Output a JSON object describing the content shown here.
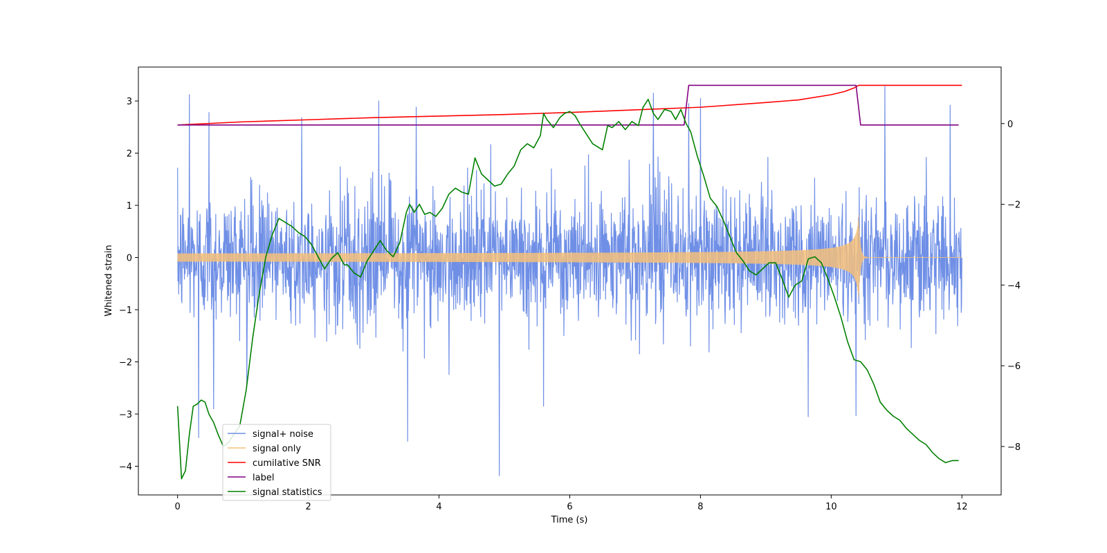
{
  "chart_data": {
    "type": "line",
    "title": "",
    "xlabel": "Time (s)",
    "ylabel": "Whitened strain",
    "y2label": "",
    "xlim": [
      -0.6,
      12.6
    ],
    "ylim": [
      -4.55,
      3.65
    ],
    "y2lim": [
      -9.2,
      1.4
    ],
    "x_ticks": [
      0,
      2,
      4,
      6,
      8,
      10,
      12
    ],
    "x_tick_labels": [
      "0",
      "2",
      "4",
      "6",
      "8",
      "10",
      "12"
    ],
    "y_ticks": [
      -4,
      -3,
      -2,
      -1,
      0,
      1,
      2,
      3
    ],
    "y_tick_labels": [
      "−4",
      "−3",
      "−2",
      "−1",
      "0",
      "1",
      "2",
      "3"
    ],
    "y2_ticks": [
      -8,
      -6,
      -4,
      -2,
      0
    ],
    "y2_tick_labels": [
      "−8",
      "−6",
      "−4",
      "−2",
      "0"
    ],
    "grid": false,
    "legend_placement": "lower-left",
    "series": [
      {
        "name": "signal+ noise",
        "color": "#6f8fe6",
        "axis": "left",
        "kind": "noise",
        "x_range": [
          0,
          12
        ],
        "noise_sigma": 0.62,
        "spikes": [
          [
            0.18,
            3.12
          ],
          [
            0.32,
            -3.45
          ],
          [
            0.48,
            2.78
          ],
          [
            0.55,
            -2.9
          ],
          [
            1.9,
            2.68
          ],
          [
            3.08,
            3.0
          ],
          [
            3.52,
            -3.52
          ],
          [
            3.65,
            2.88
          ],
          [
            4.92,
            -4.18
          ],
          [
            5.6,
            -2.85
          ],
          [
            7.28,
            3.15
          ],
          [
            7.82,
            2.95
          ],
          [
            8.0,
            3.05
          ],
          [
            9.65,
            -3.05
          ],
          [
            10.38,
            -3.03
          ],
          [
            10.82,
            3.28
          ],
          [
            11.82,
            2.92
          ]
        ]
      },
      {
        "name": "signal only",
        "color": "#f5c07a",
        "axis": "left",
        "kind": "chirp",
        "x_range": [
          0,
          12
        ],
        "merger_time": 10.42,
        "amplitude_start": 0.06,
        "amplitude_peak": 0.85
      },
      {
        "name": "cumilative SNR",
        "color": "#ff0000",
        "axis": "left",
        "x": [
          0,
          1,
          2,
          3,
          4,
          5,
          6,
          7,
          8,
          9,
          9.5,
          10,
          10.2,
          10.35,
          10.42,
          12
        ],
        "y": [
          2.54,
          2.6,
          2.64,
          2.68,
          2.71,
          2.74,
          2.78,
          2.83,
          2.88,
          2.97,
          3.02,
          3.12,
          3.18,
          3.25,
          3.3,
          3.3
        ]
      },
      {
        "name": "label",
        "color": "#800080",
        "axis": "left",
        "x": [
          0,
          7.75,
          7.82,
          10.38,
          10.45,
          11.95
        ],
        "y": [
          2.54,
          2.54,
          3.3,
          3.3,
          2.54,
          2.54
        ]
      },
      {
        "name": "signal statistics",
        "color": "#008000",
        "axis": "right",
        "x": [
          0,
          0.06,
          0.12,
          0.18,
          0.24,
          0.3,
          0.36,
          0.42,
          0.48,
          0.55,
          0.62,
          0.7,
          0.78,
          0.86,
          0.95,
          1.05,
          1.15,
          1.25,
          1.35,
          1.45,
          1.55,
          1.65,
          1.75,
          1.85,
          1.95,
          2.05,
          2.15,
          2.25,
          2.35,
          2.45,
          2.55,
          2.6,
          2.7,
          2.8,
          2.9,
          3.0,
          3.1,
          3.2,
          3.3,
          3.4,
          3.5,
          3.55,
          3.62,
          3.7,
          3.78,
          3.86,
          3.95,
          4.05,
          4.15,
          4.25,
          4.35,
          4.45,
          4.55,
          4.65,
          4.75,
          4.85,
          4.95,
          5.05,
          5.15,
          5.25,
          5.35,
          5.45,
          5.55,
          5.6,
          5.65,
          5.75,
          5.85,
          5.92,
          6.0,
          6.08,
          6.15,
          6.25,
          6.35,
          6.45,
          6.5,
          6.58,
          6.65,
          6.75,
          6.85,
          6.95,
          7.05,
          7.12,
          7.2,
          7.28,
          7.35,
          7.45,
          7.55,
          7.62,
          7.7,
          7.78,
          7.85,
          7.95,
          8.05,
          8.15,
          8.25,
          8.35,
          8.45,
          8.55,
          8.65,
          8.75,
          8.85,
          8.95,
          9.05,
          9.15,
          9.25,
          9.35,
          9.45,
          9.55,
          9.65,
          9.75,
          9.85,
          9.95,
          10.05,
          10.15,
          10.25,
          10.35,
          10.45,
          10.55,
          10.65,
          10.75,
          10.85,
          10.95,
          11.05,
          11.15,
          11.25,
          11.35,
          11.45,
          11.55,
          11.65,
          11.75,
          11.85,
          11.95
        ],
        "y": [
          -7.0,
          -8.8,
          -8.6,
          -7.7,
          -7.0,
          -6.95,
          -6.85,
          -6.9,
          -7.2,
          -7.4,
          -7.7,
          -8.0,
          -7.9,
          -7.7,
          -7.5,
          -6.6,
          -5.3,
          -4.2,
          -3.3,
          -2.75,
          -2.35,
          -2.45,
          -2.55,
          -2.7,
          -2.8,
          -3.0,
          -3.3,
          -3.6,
          -3.35,
          -3.2,
          -3.5,
          -3.5,
          -3.7,
          -3.8,
          -3.4,
          -3.15,
          -2.9,
          -3.15,
          -3.3,
          -2.95,
          -2.2,
          -2.0,
          -2.2,
          -2.0,
          -2.25,
          -2.2,
          -2.3,
          -2.1,
          -1.75,
          -1.6,
          -1.7,
          -1.75,
          -0.85,
          -1.25,
          -1.4,
          -1.55,
          -1.5,
          -1.25,
          -1.05,
          -0.65,
          -0.5,
          -0.6,
          -0.3,
          0.25,
          0.1,
          -0.1,
          0.15,
          0.25,
          0.3,
          0.2,
          0.0,
          -0.25,
          -0.5,
          -0.6,
          -0.65,
          -0.05,
          -0.1,
          0.05,
          -0.15,
          0.05,
          -0.05,
          0.4,
          0.6,
          0.25,
          0.1,
          0.35,
          0.3,
          0.1,
          0.35,
          0.0,
          -0.2,
          -0.8,
          -1.3,
          -1.85,
          -2.05,
          -2.4,
          -2.8,
          -3.2,
          -3.4,
          -3.65,
          -3.75,
          -3.6,
          -3.45,
          -3.45,
          -3.85,
          -4.3,
          -4.0,
          -3.9,
          -3.35,
          -3.3,
          -3.45,
          -3.85,
          -4.3,
          -4.8,
          -5.4,
          -5.85,
          -5.9,
          -6.1,
          -6.45,
          -6.9,
          -7.1,
          -7.25,
          -7.35,
          -7.55,
          -7.7,
          -7.85,
          -7.95,
          -8.15,
          -8.3,
          -8.4,
          -8.35,
          -8.35
        ]
      }
    ]
  }
}
